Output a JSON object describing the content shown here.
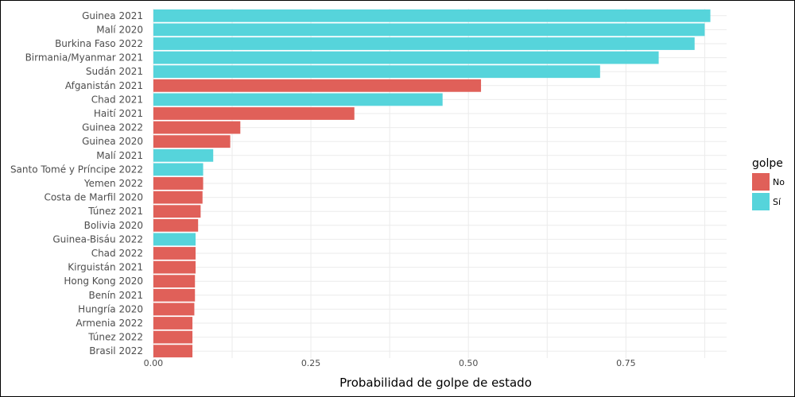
{
  "chart_data": {
    "type": "bar",
    "orientation": "horizontal",
    "categories": [
      "Guinea 2021",
      "Malí 2020",
      "Burkina Faso 2022",
      "Birmania/Myanmar 2021",
      "Sudán 2021",
      "Afganistán 2021",
      "Chad 2021",
      "Haití 2021",
      "Guinea 2022",
      "Guinea 2020",
      "Malí 2021",
      "Santo Tomé y Príncipe 2022",
      "Yemen 2022",
      "Costa de Marfil 2020",
      "Túnez 2021",
      "Bolivia 2020",
      "Guinea-Bisáu 2022",
      "Chad 2022",
      "Kirguistán 2021",
      "Hong Kong 2020",
      "Benín 2021",
      "Hungría 2020",
      "Armenia 2022",
      "Túnez 2022",
      "Brasil 2022"
    ],
    "values": [
      0.884,
      0.875,
      0.859,
      0.802,
      0.709,
      0.52,
      0.459,
      0.319,
      0.138,
      0.122,
      0.095,
      0.079,
      0.079,
      0.078,
      0.075,
      0.071,
      0.067,
      0.067,
      0.067,
      0.066,
      0.066,
      0.065,
      0.062,
      0.062,
      0.062
    ],
    "groups": [
      "Sí",
      "Sí",
      "Sí",
      "Sí",
      "Sí",
      "No",
      "Sí",
      "No",
      "No",
      "No",
      "Sí",
      "Sí",
      "No",
      "No",
      "No",
      "No",
      "Sí",
      "No",
      "No",
      "No",
      "No",
      "No",
      "No",
      "No",
      "No"
    ],
    "xlabel": "Probabilidad de golpe de estado",
    "ylabel": "",
    "xlim": [
      -0.01,
      0.93
    ],
    "xticks": [
      0.0,
      0.25,
      0.5,
      0.75
    ],
    "xtick_labels": [
      "0.00",
      "0.25",
      "0.50",
      "0.75"
    ],
    "grid": true,
    "legend": {
      "title": "golpe",
      "position": "right",
      "entries": [
        {
          "label": "No",
          "color": "#e06059"
        },
        {
          "label": "Sí",
          "color": "#56d4db"
        }
      ]
    }
  }
}
